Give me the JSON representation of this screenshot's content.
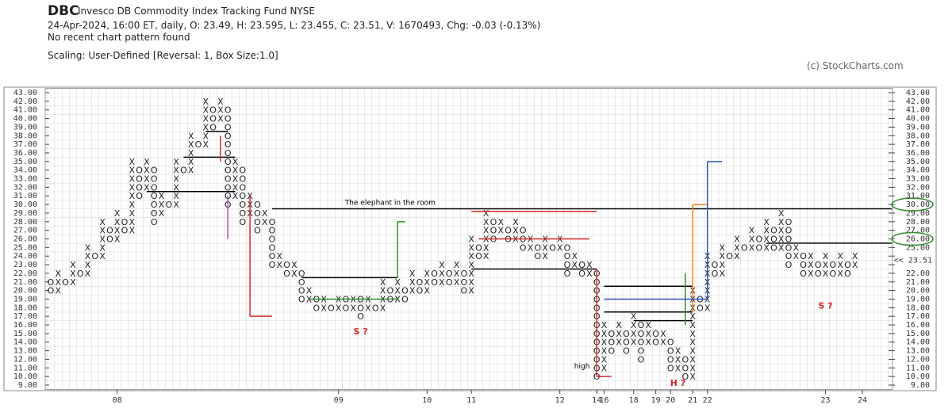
{
  "chart_data": {
    "type": "point-and-figure",
    "symbol": "DBC",
    "name": "Invesco DB Commodity Index Tracking Fund  NYSE",
    "quote_line": "24-Apr-2024, 16:00 ET, daily, O: 23.49, H: 23.595, L: 23.455, C: 23.51, V: 1670493, Chg: -0.03 (-0.13%)",
    "pattern_line": "No recent chart pattern found",
    "scaling_line": "Scaling: User-Defined [Reversal: 1, Box Size:1.0]",
    "credit": "(c) StockCharts.com",
    "ylim": [
      9,
      43
    ],
    "yticks": [
      {
        "value": 9,
        "label": "9.00"
      },
      {
        "value": 10,
        "label": "10.00"
      },
      {
        "value": 11,
        "label": "11.00"
      },
      {
        "value": 12,
        "label": "12.00"
      },
      {
        "value": 13,
        "label": "13.00"
      },
      {
        "value": 14,
        "label": "14.00"
      },
      {
        "value": 15,
        "label": "15.00"
      },
      {
        "value": 16,
        "label": "16.00"
      },
      {
        "value": 17,
        "label": "17.00"
      },
      {
        "value": 18,
        "label": "18.00"
      },
      {
        "value": 19,
        "label": "19.00"
      },
      {
        "value": 20,
        "label": "20.00"
      },
      {
        "value": 21,
        "label": "21.00"
      },
      {
        "value": 22,
        "label": "22.00"
      },
      {
        "value": 23,
        "label": "23.00"
      },
      {
        "value": 24,
        "label": "24.00"
      },
      {
        "value": 25,
        "label": "25.00"
      },
      {
        "value": 26,
        "label": "26.00"
      },
      {
        "value": 27,
        "label": "27.00"
      },
      {
        "value": 28,
        "label": "28.00"
      },
      {
        "value": 29,
        "label": "29.00"
      },
      {
        "value": 30,
        "label": "30.00"
      },
      {
        "value": 31,
        "label": "31.00"
      },
      {
        "value": 32,
        "label": "32.00"
      },
      {
        "value": 33,
        "label": "33.00"
      },
      {
        "value": 34,
        "label": "34.00"
      },
      {
        "value": 35,
        "label": "35.00"
      },
      {
        "value": 36,
        "label": "36.00"
      },
      {
        "value": 37,
        "label": "37.00"
      },
      {
        "value": 38,
        "label": "38.00"
      },
      {
        "value": 39,
        "label": "39.00"
      },
      {
        "value": 40,
        "label": "40.00"
      },
      {
        "value": 41,
        "label": "41.00"
      },
      {
        "value": 42,
        "label": "42.00"
      },
      {
        "value": 43,
        "label": "43.00"
      }
    ],
    "highlight_tick": 23,
    "last_price": 23.51,
    "last_price_label": "<< 23.51",
    "highlight_color": "#d62728",
    "xlabels": [
      {
        "col": 9,
        "label": "08"
      },
      {
        "col": 39,
        "label": "09"
      },
      {
        "col": 51,
        "label": "10"
      },
      {
        "col": 57,
        "label": "11"
      },
      {
        "col": 69,
        "label": "12"
      },
      {
        "col": 74,
        "label": "14"
      },
      {
        "col": 75,
        "label": "16"
      },
      {
        "col": 79,
        "label": "18"
      },
      {
        "col": 82,
        "label": "19"
      },
      {
        "col": 84,
        "label": "20"
      },
      {
        "col": 87,
        "label": "21"
      },
      {
        "col": 89,
        "label": "22"
      },
      {
        "col": 105,
        "label": "23"
      },
      {
        "col": 110,
        "label": "24"
      }
    ],
    "columns": [
      {
        "kind": "O",
        "low": 20,
        "high": 21
      },
      {
        "kind": "X",
        "low": 20,
        "high": 22
      },
      {
        "kind": "O",
        "low": 21,
        "high": 21
      },
      {
        "kind": "X",
        "low": 21,
        "high": 23
      },
      {
        "kind": "O",
        "low": 22,
        "high": 22
      },
      {
        "kind": "X",
        "low": 22,
        "high": 25
      },
      {
        "kind": "O",
        "low": 24,
        "high": 24
      },
      {
        "kind": "X",
        "low": 24,
        "high": 28
      },
      {
        "kind": "O",
        "low": 26,
        "high": 27
      },
      {
        "kind": "X",
        "low": 26,
        "high": 29
      },
      {
        "kind": "O",
        "low": 27,
        "high": 28
      },
      {
        "kind": "X",
        "low": 27,
        "high": 35
      },
      {
        "kind": "O",
        "low": 31,
        "high": 34
      },
      {
        "kind": "X",
        "low": 32,
        "high": 35
      },
      {
        "kind": "O",
        "low": 28,
        "high": 34
      },
      {
        "kind": "X",
        "low": 29,
        "high": 31
      },
      {
        "kind": "O",
        "low": 30,
        "high": 30
      },
      {
        "kind": "X",
        "low": 30,
        "high": 35
      },
      {
        "kind": "O",
        "low": 34,
        "high": 34
      },
      {
        "kind": "X",
        "low": 34,
        "high": 38
      },
      {
        "kind": "O",
        "low": 37,
        "high": 37
      },
      {
        "kind": "X",
        "low": 37,
        "high": 42
      },
      {
        "kind": "O",
        "low": 39,
        "high": 41
      },
      {
        "kind": "X",
        "low": 40,
        "high": 42
      },
      {
        "kind": "O",
        "low": 30,
        "high": 41
      },
      {
        "kind": "X",
        "low": 31,
        "high": 35
      },
      {
        "kind": "O",
        "low": 28,
        "high": 34
      },
      {
        "kind": "X",
        "low": 29,
        "high": 31
      },
      {
        "kind": "O",
        "low": 27,
        "high": 30
      },
      {
        "kind": "X",
        "low": 28,
        "high": 29
      },
      {
        "kind": "O",
        "low": 23,
        "high": 28
      },
      {
        "kind": "X",
        "low": 23,
        "high": 24
      },
      {
        "kind": "O",
        "low": 22,
        "high": 23
      },
      {
        "kind": "X",
        "low": 22,
        "high": 23
      },
      {
        "kind": "O",
        "low": 19,
        "high": 22
      },
      {
        "kind": "X",
        "low": 19,
        "high": 20
      },
      {
        "kind": "O",
        "low": 18,
        "high": 19
      },
      {
        "kind": "X",
        "low": 18,
        "high": 19
      },
      {
        "kind": "O",
        "low": 18,
        "high": 18
      },
      {
        "kind": "X",
        "low": 18,
        "high": 19
      },
      {
        "kind": "O",
        "low": 18,
        "high": 19
      },
      {
        "kind": "X",
        "low": 18,
        "high": 19
      },
      {
        "kind": "O",
        "low": 17,
        "high": 19
      },
      {
        "kind": "X",
        "low": 18,
        "high": 19
      },
      {
        "kind": "O",
        "low": 18,
        "high": 18
      },
      {
        "kind": "X",
        "low": 18,
        "high": 21
      },
      {
        "kind": "O",
        "low": 19,
        "high": 20
      },
      {
        "kind": "X",
        "low": 19,
        "high": 21
      },
      {
        "kind": "O",
        "low": 19,
        "high": 20
      },
      {
        "kind": "X",
        "low": 20,
        "high": 22
      },
      {
        "kind": "O",
        "low": 20,
        "high": 21
      },
      {
        "kind": "X",
        "low": 20,
        "high": 22
      },
      {
        "kind": "O",
        "low": 21,
        "high": 22
      },
      {
        "kind": "X",
        "low": 21,
        "high": 23
      },
      {
        "kind": "O",
        "low": 21,
        "high": 22
      },
      {
        "kind": "X",
        "low": 21,
        "high": 23
      },
      {
        "kind": "O",
        "low": 20,
        "high": 22
      },
      {
        "kind": "X",
        "low": 20,
        "high": 26
      },
      {
        "kind": "O",
        "low": 24,
        "high": 25
      },
      {
        "kind": "X",
        "low": 24,
        "high": 29
      },
      {
        "kind": "O",
        "low": 26,
        "high": 28
      },
      {
        "kind": "X",
        "low": 27,
        "high": 28
      },
      {
        "kind": "O",
        "low": 26,
        "high": 27
      },
      {
        "kind": "X",
        "low": 26,
        "high": 28
      },
      {
        "kind": "O",
        "low": 25,
        "high": 27
      },
      {
        "kind": "X",
        "low": 25,
        "high": 26
      },
      {
        "kind": "O",
        "low": 24,
        "high": 25
      },
      {
        "kind": "X",
        "low": 24,
        "high": 26
      },
      {
        "kind": "O",
        "low": 25,
        "high": 25
      },
      {
        "kind": "X",
        "low": 25,
        "high": 26
      },
      {
        "kind": "O",
        "low": 22,
        "high": 25
      },
      {
        "kind": "X",
        "low": 23,
        "high": 24
      },
      {
        "kind": "O",
        "low": 22,
        "high": 23
      },
      {
        "kind": "X",
        "low": 22,
        "high": 23
      },
      {
        "kind": "O",
        "low": 10,
        "high": 22
      },
      {
        "kind": "X",
        "low": 11,
        "high": 16
      },
      {
        "kind": "O",
        "low": 13,
        "high": 15
      },
      {
        "kind": "X",
        "low": 14,
        "high": 16
      },
      {
        "kind": "O",
        "low": 13,
        "high": 15
      },
      {
        "kind": "X",
        "low": 14,
        "high": 17
      },
      {
        "kind": "O",
        "low": 12,
        "high": 16
      },
      {
        "kind": "X",
        "low": 14,
        "high": 16
      },
      {
        "kind": "O",
        "low": 14,
        "high": 15
      },
      {
        "kind": "X",
        "low": 14,
        "high": 15
      },
      {
        "kind": "O",
        "low": 11,
        "high": 14
      },
      {
        "kind": "X",
        "low": 11,
        "high": 13
      },
      {
        "kind": "O",
        "low": 10,
        "high": 12
      },
      {
        "kind": "X",
        "low": 10,
        "high": 20
      },
      {
        "kind": "O",
        "low": 18,
        "high": 19
      },
      {
        "kind": "X",
        "low": 18,
        "high": 24
      },
      {
        "kind": "O",
        "low": 22,
        "high": 23
      },
      {
        "kind": "X",
        "low": 22,
        "high": 25
      },
      {
        "kind": "O",
        "low": 24,
        "high": 24
      },
      {
        "kind": "X",
        "low": 24,
        "high": 26
      },
      {
        "kind": "O",
        "low": 25,
        "high": 25
      },
      {
        "kind": "X",
        "low": 25,
        "high": 27
      },
      {
        "kind": "O",
        "low": 25,
        "high": 26
      },
      {
        "kind": "X",
        "low": 25,
        "high": 28
      },
      {
        "kind": "O",
        "low": 25,
        "high": 27
      },
      {
        "kind": "X",
        "low": 25,
        "high": 29
      },
      {
        "kind": "O",
        "low": 23,
        "high": 28
      },
      {
        "kind": "X",
        "low": 24,
        "high": 25
      },
      {
        "kind": "O",
        "low": 22,
        "high": 24
      },
      {
        "kind": "X",
        "low": 22,
        "high": 24
      },
      {
        "kind": "O",
        "low": 22,
        "high": 23
      },
      {
        "kind": "X",
        "low": 22,
        "high": 24
      },
      {
        "kind": "O",
        "low": 22,
        "high": 23
      },
      {
        "kind": "X",
        "low": 22,
        "high": 24
      },
      {
        "kind": "O",
        "low": 22,
        "high": 23
      },
      {
        "kind": "X",
        "low": 23,
        "high": 24
      }
    ],
    "segments": [
      {
        "x1": 30,
        "y1": 29.5,
        "x2": 114,
        "y2": 29.5,
        "color": "#000000"
      },
      {
        "x1": 97,
        "y1": 25.5,
        "x2": 114,
        "y2": 25.5,
        "color": "#000000"
      },
      {
        "x1": 13,
        "y1": 31.5,
        "x2": 25,
        "y2": 31.5,
        "color": "#000000"
      },
      {
        "x1": 18,
        "y1": 35.5,
        "x2": 25,
        "y2": 35.5,
        "color": "#000000"
      },
      {
        "x1": 21,
        "y1": 38.5,
        "x2": 24,
        "y2": 38.5,
        "color": "#000000"
      },
      {
        "x1": 34,
        "y1": 21.5,
        "x2": 47,
        "y2": 21.5,
        "color": "#000000"
      },
      {
        "x1": 57,
        "y1": 22.5,
        "x2": 74,
        "y2": 22.5,
        "color": "#000000"
      },
      {
        "x1": 75,
        "y1": 20.5,
        "x2": 87,
        "y2": 20.5,
        "color": "#000000"
      },
      {
        "x1": 75,
        "y1": 17.5,
        "x2": 87,
        "y2": 17.5,
        "color": "#000000"
      },
      {
        "x1": 79,
        "y1": 16.5,
        "x2": 87,
        "y2": 16.5,
        "color": "#000000"
      },
      {
        "x1": 57,
        "y1": 29.2,
        "x2": 74,
        "y2": 29.2,
        "color": "#d62728"
      },
      {
        "x1": 58,
        "y1": 26,
        "x2": 73,
        "y2": 26,
        "color": "#d62728"
      },
      {
        "x1": 24,
        "y1": 31,
        "x2": 24,
        "y2": 26,
        "color": "#9b4fb0"
      },
      {
        "x1": 27,
        "y1": 31,
        "x2": 27,
        "y2": 17,
        "color": "#d62728"
      },
      {
        "x1": 27,
        "y1": 17,
        "x2": 30,
        "y2": 17,
        "color": "#d62728"
      },
      {
        "x1": 23,
        "y1": 38,
        "x2": 23,
        "y2": 35,
        "color": "#d62728"
      },
      {
        "x1": 74,
        "y1": 22.5,
        "x2": 74,
        "y2": 10,
        "color": "#d62728"
      },
      {
        "x1": 74,
        "y1": 10,
        "x2": 76,
        "y2": 10,
        "color": "#d62728"
      },
      {
        "x1": 35,
        "y1": 19,
        "x2": 47,
        "y2": 19,
        "color": "#2e8b2e"
      },
      {
        "x1": 47,
        "y1": 21.5,
        "x2": 47,
        "y2": 28,
        "color": "#2e8b2e"
      },
      {
        "x1": 47,
        "y1": 28,
        "x2": 48,
        "y2": 28,
        "color": "#2e8b2e"
      },
      {
        "x1": 86,
        "y1": 16,
        "x2": 86,
        "y2": 22,
        "color": "#2e8b2e"
      },
      {
        "x1": 87,
        "y1": 17.5,
        "x2": 87,
        "y2": 30,
        "color": "#ff7f0e"
      },
      {
        "x1": 87,
        "y1": 30,
        "x2": 89,
        "y2": 30,
        "color": "#ff7f0e"
      },
      {
        "x1": 75,
        "y1": 19,
        "x2": 89,
        "y2": 19,
        "color": "#3050c0"
      },
      {
        "x1": 89,
        "y1": 19,
        "x2": 89,
        "y2": 35,
        "color": "#3050c0"
      },
      {
        "x1": 89,
        "y1": 35,
        "x2": 91,
        "y2": 35,
        "color": "#3050c0"
      }
    ],
    "notes": [
      {
        "text": "The elephant in the room",
        "col": 46,
        "level": 30,
        "color": "#000000"
      },
      {
        "text": "S ?",
        "col": 42,
        "level": 15,
        "color": "#d62728"
      },
      {
        "text": "S ?",
        "col": 105,
        "level": 18,
        "color": "#d62728"
      },
      {
        "text": "H ?",
        "col": 85,
        "level": 9,
        "color": "#d62728"
      },
      {
        "text": "high",
        "col": 72,
        "level": 11,
        "color": "#000000"
      }
    ],
    "circled_levels": [
      30,
      26
    ],
    "circle_color": "#2e8b2e"
  }
}
